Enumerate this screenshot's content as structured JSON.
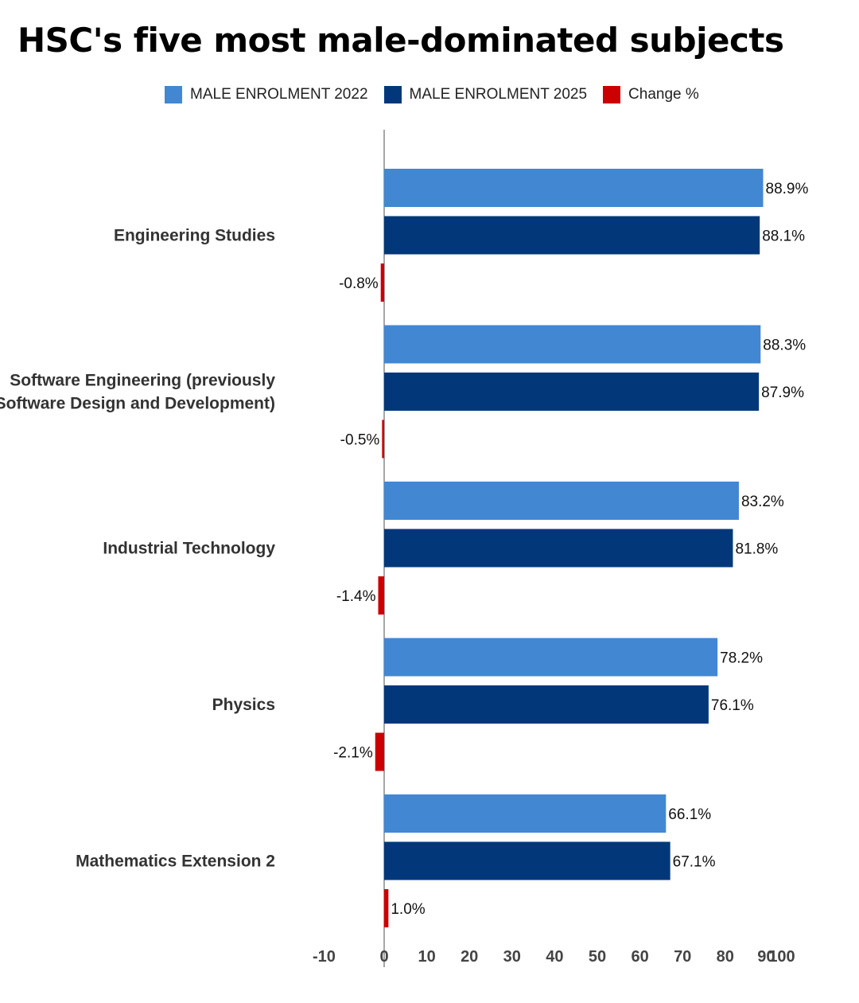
{
  "chart_data": {
    "type": "bar",
    "orientation": "horizontal",
    "title": "HSC's five most male-dominated subjects",
    "categories": [
      [
        "Engineering Studies"
      ],
      [
        "Software Engineering (previously",
        "Software Design and Development)"
      ],
      [
        "Industrial Technology"
      ],
      [
        "Physics"
      ],
      [
        "Mathematics Extension 2"
      ]
    ],
    "series": [
      {
        "name": "MALE ENROLMENT 2022",
        "color": "#4287d2",
        "values": [
          88.9,
          88.3,
          83.2,
          78.2,
          66.1
        ],
        "labels": [
          "88.9%",
          "88.3%",
          "83.2%",
          "78.2%",
          "66.1%"
        ]
      },
      {
        "name": "MALE ENROLMENT 2025",
        "color": "#02387a",
        "values": [
          88.1,
          87.9,
          81.8,
          76.1,
          67.1
        ],
        "labels": [
          "88.1%",
          "87.9%",
          "81.8%",
          "76.1%",
          "67.1%"
        ]
      },
      {
        "name": "Change %",
        "color": "#cc0000",
        "values": [
          -0.8,
          -0.5,
          -1.4,
          -2.1,
          1.0
        ],
        "labels": [
          "-0.8%",
          "-0.5%",
          "-1.4%",
          "-2.1%",
          "1.0%"
        ]
      }
    ],
    "xlim": [
      -10,
      100
    ],
    "xticks": [
      -10,
      0,
      10,
      20,
      30,
      40,
      50,
      60,
      70,
      80,
      90,
      100
    ],
    "xlabel": "",
    "ylabel": "",
    "legend_position": "top",
    "grid": false
  }
}
